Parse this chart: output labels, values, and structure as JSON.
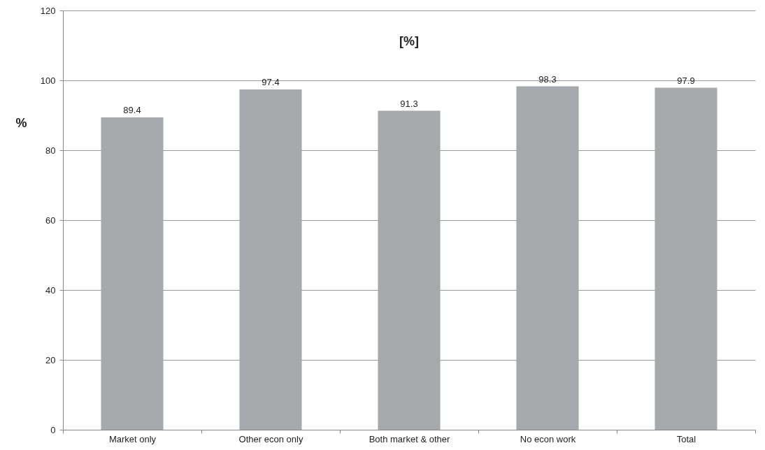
{
  "chart_data": {
    "type": "bar",
    "title": "[%]",
    "ylabel": "%",
    "categories": [
      "Market only",
      "Other econ only",
      "Both market & other",
      "No econ work",
      "Total"
    ],
    "values": [
      89.4,
      97.4,
      91.3,
      98.3,
      97.9
    ],
    "color": "#a7a8ac",
    "ylim": [
      0,
      120
    ],
    "yticks": [
      0,
      20,
      40,
      60,
      80,
      100,
      120
    ],
    "grid": "y",
    "data_labels": true
  }
}
